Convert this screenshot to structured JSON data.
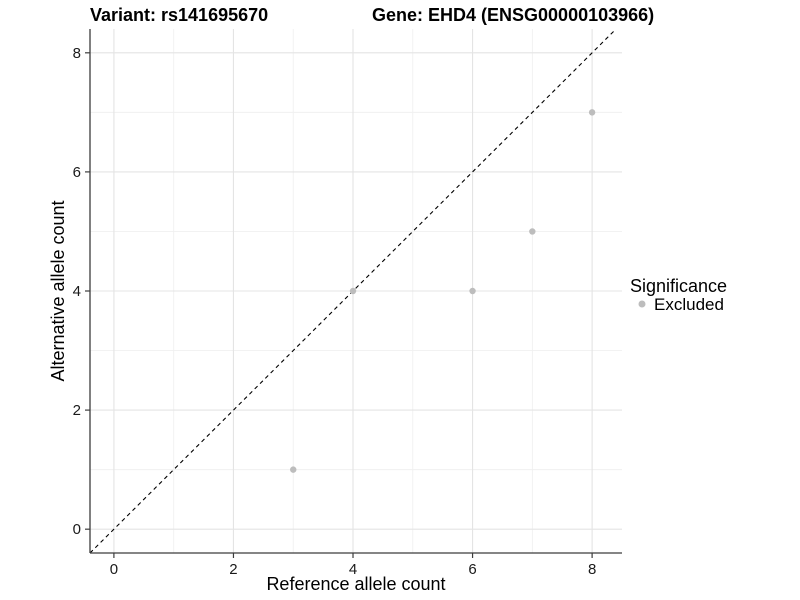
{
  "header": {
    "variant_title": "Variant: rs141695670",
    "gene_title": "Gene: EHD4 (ENSG00000103966)"
  },
  "chart_data": {
    "type": "scatter",
    "title": "Variant: rs141695670   Gene: EHD4 (ENSG00000103966)",
    "xlabel": "Reference allele count",
    "ylabel": "Alternative allele count",
    "xlim": [
      -0.4,
      8.5
    ],
    "ylim": [
      -0.4,
      8.4
    ],
    "x_ticks": [
      0,
      2,
      4,
      6,
      8
    ],
    "y_ticks": [
      0,
      2,
      4,
      6,
      8
    ],
    "x_minor_gridlines": [
      1,
      3,
      5,
      7
    ],
    "y_minor_gridlines": [
      1,
      3,
      5,
      7
    ],
    "grid": "on",
    "identity_line": {
      "equation": "y = x",
      "style": "dashed",
      "color": "#000000"
    },
    "series": [
      {
        "name": "Excluded",
        "marker": "circle",
        "color": "#bdbdbd",
        "points": [
          {
            "x": 3,
            "y": 1
          },
          {
            "x": 4,
            "y": 4
          },
          {
            "x": 6,
            "y": 4
          },
          {
            "x": 7,
            "y": 5
          },
          {
            "x": 8,
            "y": 7
          }
        ]
      }
    ],
    "legend": {
      "title": "Significance",
      "position": "right",
      "entries": [
        {
          "label": "Excluded",
          "color": "#bdbdbd"
        }
      ]
    }
  },
  "style": {
    "background": "#ffffff",
    "grid_major_color": "#e4e4e4",
    "grid_minor_color": "#f0f0f0",
    "axis_line_color": "#3c3c3c",
    "tick_color": "#3c3c3c",
    "text_color": "#000000",
    "point_radius": 3.2
  }
}
